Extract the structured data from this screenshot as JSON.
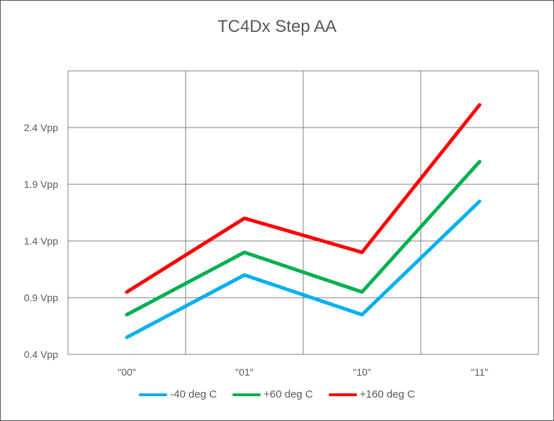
{
  "chart_data": {
    "type": "line",
    "title": "TC4Dx Step AA",
    "xlabel": "",
    "ylabel": "",
    "categories": [
      "\"00\"",
      "\"01\"",
      "\"10\"",
      "\"11\""
    ],
    "y_ticks": [
      "0.4 Vpp",
      "0.9 Vpp",
      "1.4 Vpp",
      "1.9 Vpp",
      "2.4 Vpp"
    ],
    "y_tick_values": [
      0.4,
      0.9,
      1.4,
      1.9,
      2.4
    ],
    "ylim": [
      0.4,
      2.9
    ],
    "grid": true,
    "legend_position": "bottom",
    "series": [
      {
        "name": "-40 deg C",
        "color": "#00b0f0",
        "values": [
          0.55,
          1.1,
          0.75,
          1.75
        ]
      },
      {
        "name": "+60 deg C",
        "color": "#00b050",
        "values": [
          0.75,
          1.3,
          0.95,
          2.1
        ]
      },
      {
        "name": "+160 deg C",
        "color": "#ff0000",
        "values": [
          0.95,
          1.6,
          1.3,
          2.6
        ]
      }
    ]
  }
}
